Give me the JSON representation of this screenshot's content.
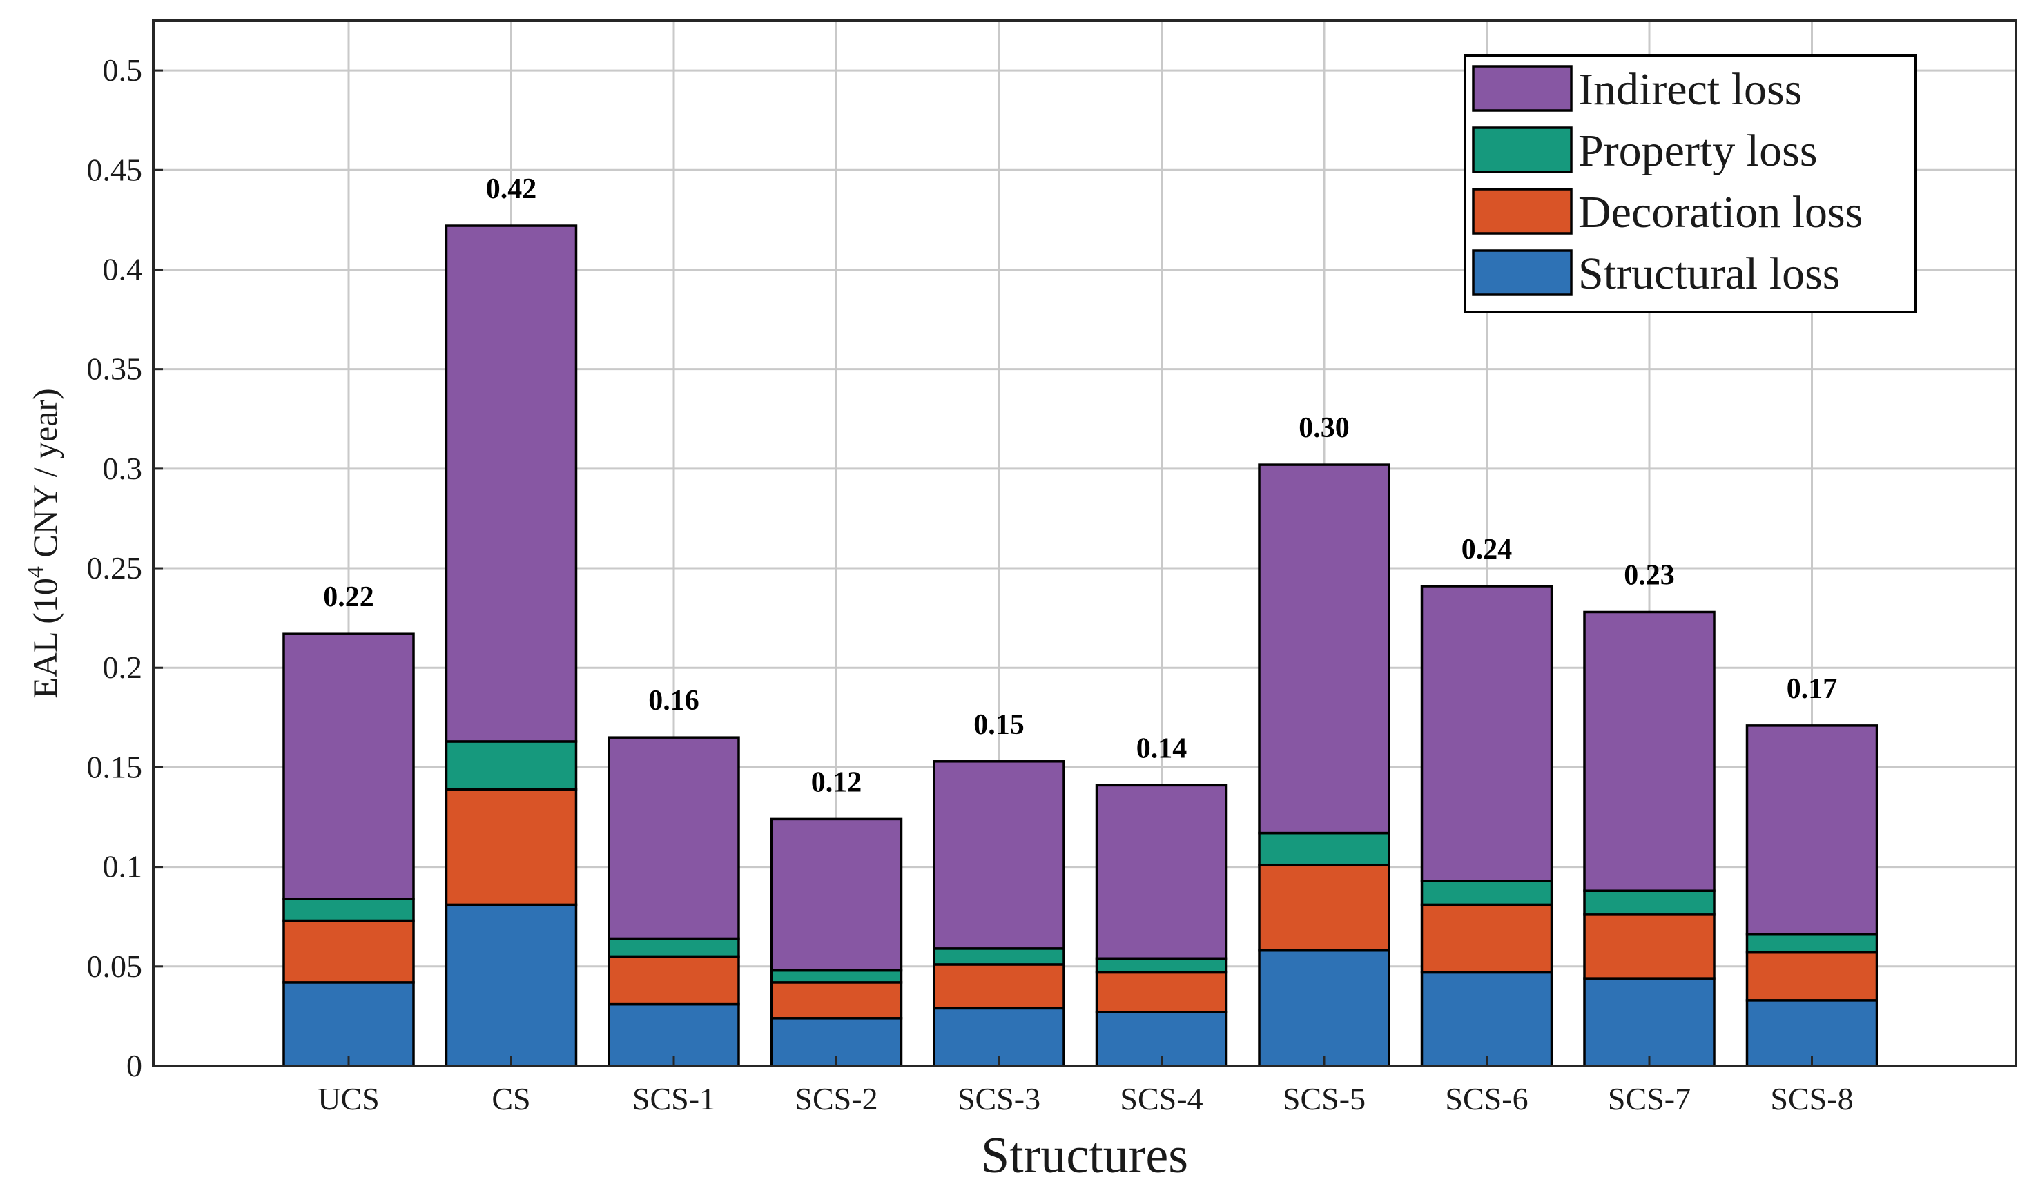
{
  "chart_data": {
    "type": "bar",
    "stacked": true,
    "title": "",
    "xlabel": "Structures",
    "ylabel_prefix": "EAL (10",
    "ylabel_superscript": "4",
    "ylabel_suffix": " CNY / year)",
    "ylim": [
      0,
      0.525
    ],
    "yticks": [
      0,
      0.05,
      0.1,
      0.15,
      0.2,
      0.25,
      0.3,
      0.35,
      0.4,
      0.45,
      0.5
    ],
    "ytick_labels": [
      "0",
      "0.05",
      "0.1",
      "0.15",
      "0.2",
      "0.25",
      "0.3",
      "0.35",
      "0.4",
      "0.45",
      "0.5"
    ],
    "grid": true,
    "legend_position": "top-right",
    "categories": [
      "UCS",
      "CS",
      "SCS-1",
      "SCS-2",
      "SCS-3",
      "SCS-4",
      "SCS-5",
      "SCS-6",
      "SCS-7",
      "SCS-8"
    ],
    "series": [
      {
        "name": "Structural loss",
        "color": "#2e72b5",
        "values": [
          0.042,
          0.081,
          0.031,
          0.024,
          0.029,
          0.027,
          0.058,
          0.047,
          0.044,
          0.033
        ]
      },
      {
        "name": "Decoration loss",
        "color": "#d95427",
        "values": [
          0.031,
          0.058,
          0.024,
          0.018,
          0.022,
          0.02,
          0.043,
          0.034,
          0.032,
          0.024
        ]
      },
      {
        "name": "Property loss",
        "color": "#16997d",
        "values": [
          0.011,
          0.024,
          0.009,
          0.006,
          0.008,
          0.007,
          0.016,
          0.012,
          0.012,
          0.009
        ]
      },
      {
        "name": "Indirect loss",
        "color": "#8757a3",
        "values": [
          0.133,
          0.259,
          0.101,
          0.076,
          0.094,
          0.087,
          0.185,
          0.148,
          0.14,
          0.105
        ]
      }
    ],
    "totals": [
      0.217,
      0.422,
      0.165,
      0.124,
      0.153,
      0.141,
      0.302,
      0.241,
      0.228,
      0.171
    ],
    "total_labels": [
      "0.22",
      "0.42",
      "0.16",
      "0.12",
      "0.15",
      "0.14",
      "0.30",
      "0.24",
      "0.23",
      "0.17"
    ],
    "legend_order": [
      "Indirect loss",
      "Property loss",
      "Decoration loss",
      "Structural loss"
    ]
  }
}
